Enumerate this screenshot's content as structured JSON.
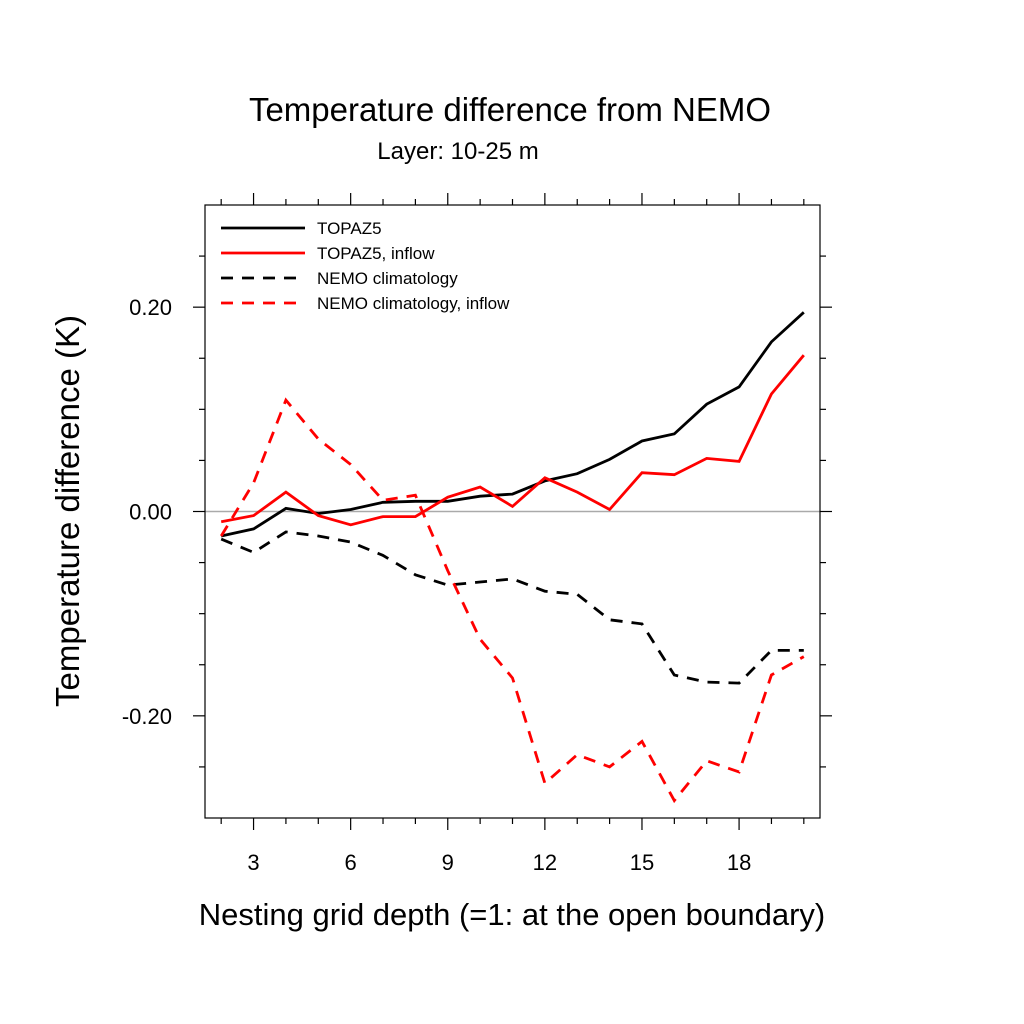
{
  "chart_data": {
    "type": "line",
    "title": "Temperature difference from NEMO",
    "subtitle": "Layer: 10-25 m",
    "xlabel": "Nesting grid depth (=1: at the open boundary)",
    "ylabel": "Temperature difference (K)",
    "xlim": [
      1.5,
      20.5
    ],
    "ylim": [
      -0.3,
      0.3
    ],
    "x_ticks": [
      3,
      6,
      9,
      12,
      15,
      18
    ],
    "x_tick_labels": [
      "3",
      "6",
      "9",
      "12",
      "15",
      "18"
    ],
    "y_ticks": [
      0.2,
      0.0,
      -0.2
    ],
    "y_tick_labels": [
      "0.20",
      "0.00",
      "-0.20"
    ],
    "x_minor_ticks": [
      2,
      4,
      5,
      7,
      8,
      10,
      11,
      13,
      14,
      16,
      17,
      19,
      20
    ],
    "y_minor_ticks": [
      0.25,
      0.15,
      0.1,
      0.05,
      -0.05,
      -0.1,
      -0.15,
      -0.25
    ],
    "zero_line": true,
    "grid": false,
    "legend_position": "top-left",
    "x": [
      2,
      3,
      4,
      5,
      6,
      7,
      8,
      9,
      10,
      11,
      12,
      13,
      14,
      15,
      16,
      17,
      18,
      19,
      20
    ],
    "series": [
      {
        "name": "TOPAZ5",
        "color": "#000000",
        "dashed": false,
        "values": [
          -0.024,
          -0.017,
          0.003,
          -0.002,
          0.002,
          0.009,
          0.01,
          0.01,
          0.015,
          0.017,
          0.03,
          0.037,
          0.051,
          0.069,
          0.076,
          0.105,
          0.122,
          0.166,
          0.195
        ]
      },
      {
        "name": "TOPAZ5, inflow",
        "color": "#ff0000",
        "dashed": false,
        "values": [
          -0.01,
          -0.004,
          0.019,
          -0.004,
          -0.013,
          -0.005,
          -0.005,
          0.014,
          0.024,
          0.005,
          0.033,
          0.019,
          0.002,
          0.038,
          0.036,
          0.052,
          0.049,
          0.115,
          0.153
        ]
      },
      {
        "name": "NEMO climatology",
        "color": "#000000",
        "dashed": true,
        "values": [
          -0.027,
          -0.04,
          -0.02,
          -0.024,
          -0.03,
          -0.043,
          -0.062,
          -0.072,
          -0.069,
          -0.066,
          -0.078,
          -0.081,
          -0.106,
          -0.11,
          -0.16,
          -0.167,
          -0.168,
          -0.136,
          -0.136
        ]
      },
      {
        "name": "NEMO climatology, inflow",
        "color": "#ff0000",
        "dashed": true,
        "values": [
          -0.024,
          0.028,
          0.109,
          0.071,
          0.046,
          0.011,
          0.016,
          -0.058,
          -0.125,
          -0.163,
          -0.266,
          -0.238,
          -0.25,
          -0.225,
          -0.283,
          -0.244,
          -0.255,
          -0.16,
          -0.142
        ]
      }
    ]
  }
}
